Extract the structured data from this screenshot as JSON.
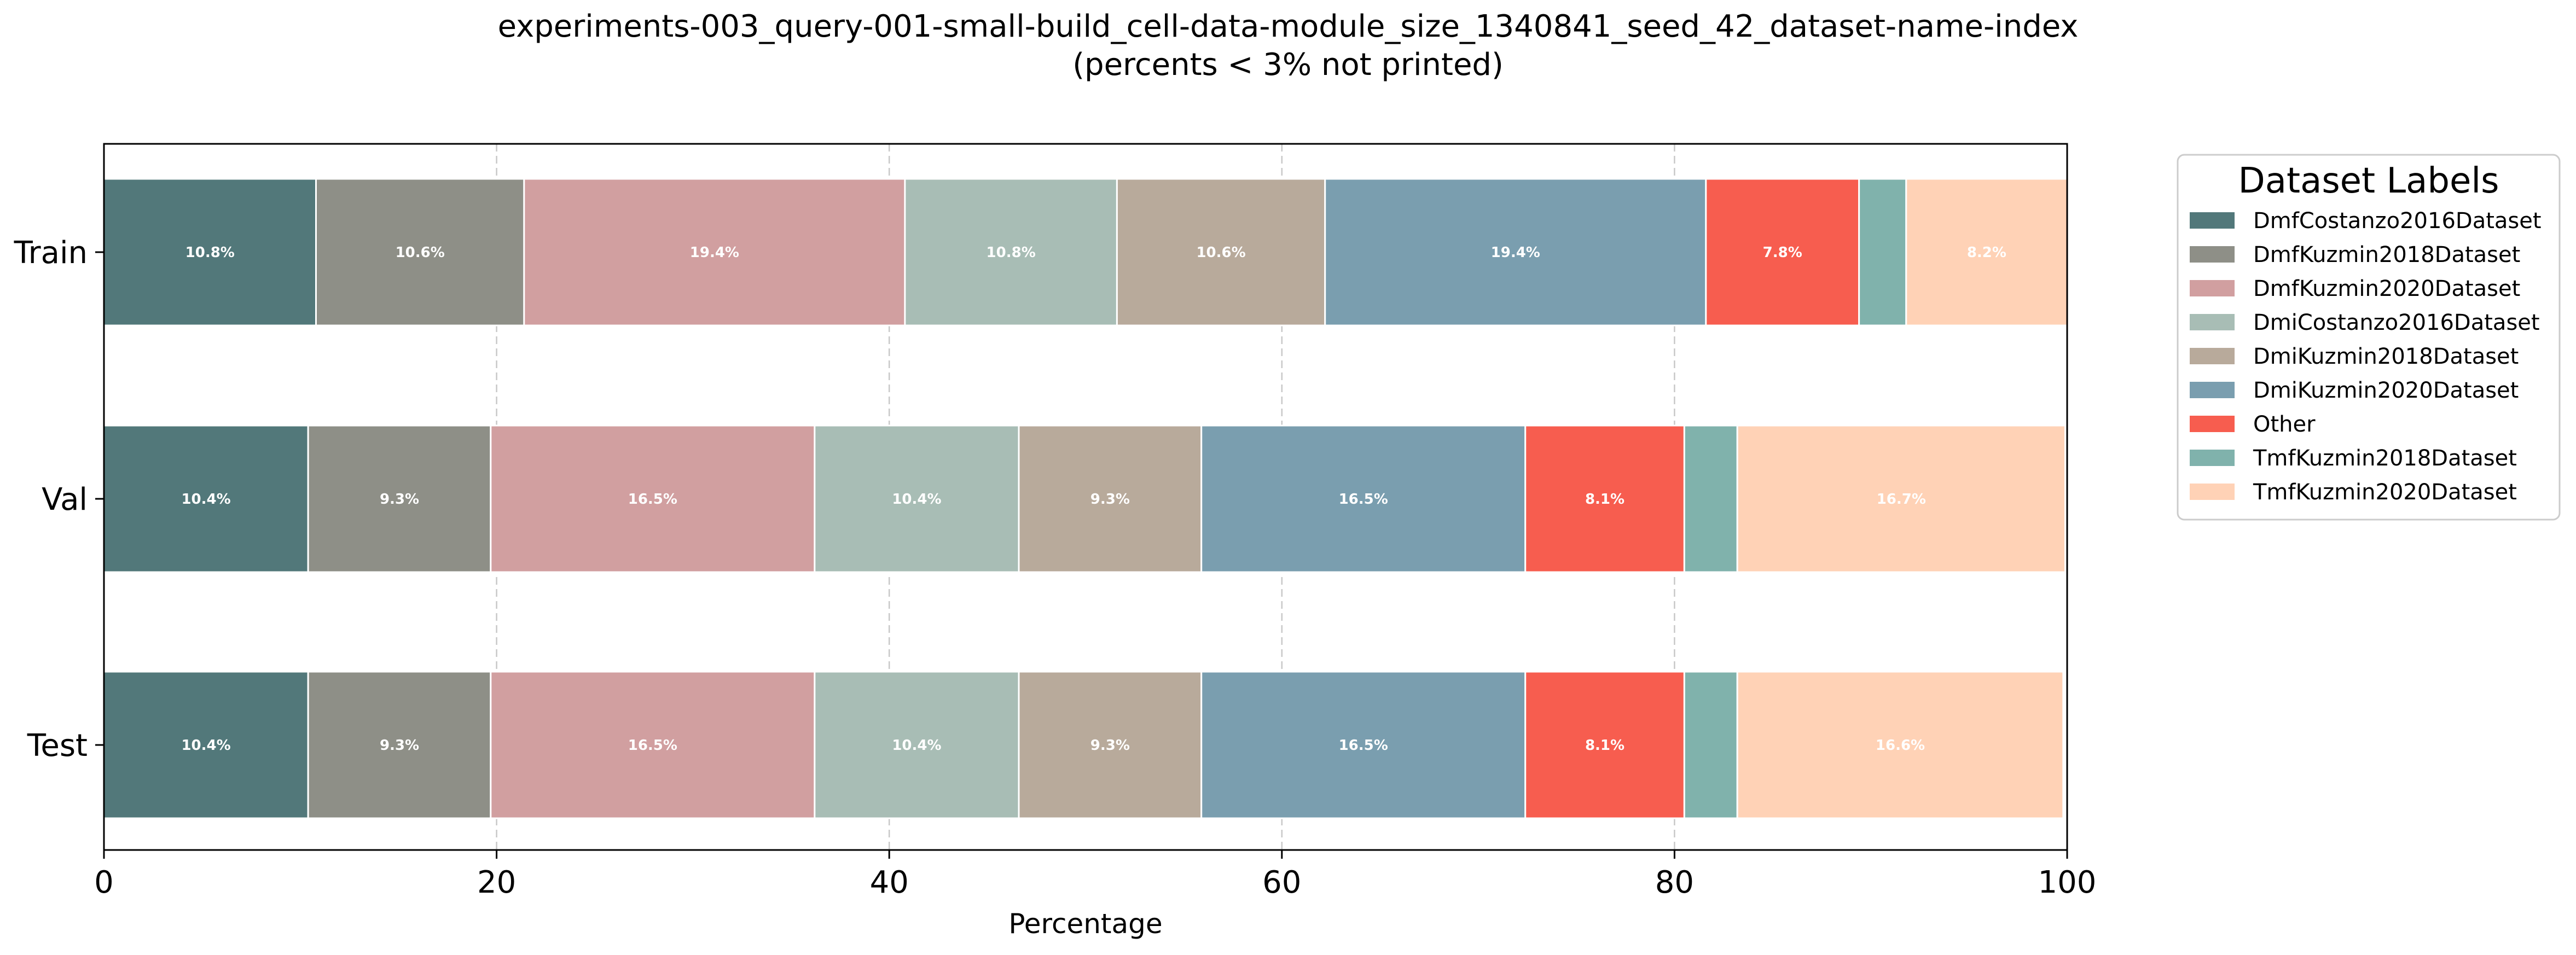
{
  "title": {
    "line1": "experiments-003_query-001-small-build_cell-data-module_size_1340841_seed_42_dataset-name-index",
    "line2": "(percents < 3% not printed)"
  },
  "chart_data": {
    "type": "bar",
    "orientation": "horizontal",
    "stacked": true,
    "categories": [
      "Train",
      "Val",
      "Test"
    ],
    "xlabel": "Percentage",
    "ylabel": "",
    "xlim": [
      0,
      100
    ],
    "xticks": [
      0,
      20,
      40,
      60,
      80,
      100
    ],
    "grid": "x, dashed",
    "label_threshold": 3,
    "legend": {
      "title": "Dataset Labels",
      "placement": "outside right, top"
    },
    "series": [
      {
        "name": "DmfCostanzo2016Dataset",
        "color": "#52787A",
        "values": [
          10.8,
          10.4,
          10.4
        ]
      },
      {
        "name": "DmfKuzmin2018Dataset",
        "color": "#8E8F87",
        "values": [
          10.6,
          9.3,
          9.3
        ]
      },
      {
        "name": "DmfKuzmin2020Dataset",
        "color": "#D19FA0",
        "values": [
          19.4,
          16.5,
          16.5
        ]
      },
      {
        "name": "DmiCostanzo2016Dataset",
        "color": "#A8BDB5",
        "values": [
          10.8,
          10.4,
          10.4
        ]
      },
      {
        "name": "DmiKuzmin2018Dataset",
        "color": "#B8AA9B",
        "values": [
          10.6,
          9.3,
          9.3
        ]
      },
      {
        "name": "DmiKuzmin2020Dataset",
        "color": "#7A9EAF",
        "values": [
          19.4,
          16.5,
          16.5
        ]
      },
      {
        "name": "Other",
        "color": "#F75D4F",
        "values": [
          7.8,
          8.1,
          8.1
        ]
      },
      {
        "name": "TmfKuzmin2018Dataset",
        "color": "#80B2AC",
        "values": [
          2.4,
          2.7,
          2.7
        ]
      },
      {
        "name": "TmfKuzmin2020Dataset",
        "color": "#FFD2B6",
        "values": [
          8.2,
          16.7,
          16.6
        ]
      }
    ]
  }
}
